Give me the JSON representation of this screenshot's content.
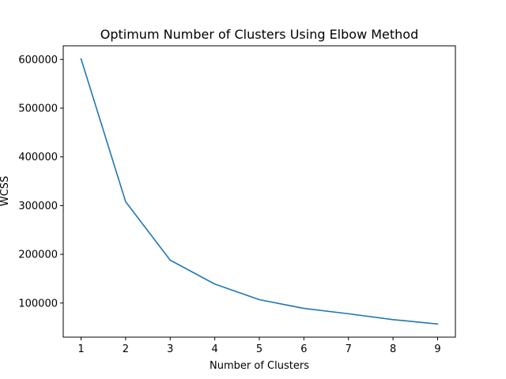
{
  "chart_data": {
    "type": "line",
    "title": "Optimum Number of Clusters Using Elbow Method",
    "xlabel": "Number of Clusters",
    "ylabel": "WCSS",
    "x": [
      1,
      2,
      3,
      4,
      5,
      6,
      7,
      8,
      9
    ],
    "series": [
      {
        "values": [
          601000,
          308000,
          188000,
          139000,
          107000,
          89000,
          78000,
          66000,
          57000
        ],
        "color": "#1f77b4"
      }
    ],
    "xlim": [
      0.6,
      9.4
    ],
    "ylim": [
      30000,
      628000
    ],
    "xticks": [
      1,
      2,
      3,
      4,
      5,
      6,
      7,
      8,
      9
    ],
    "yticks": [
      100000,
      200000,
      300000,
      400000,
      500000,
      600000
    ],
    "xtick_labels": [
      "1",
      "2",
      "3",
      "4",
      "5",
      "6",
      "7",
      "8",
      "9"
    ],
    "ytick_labels": [
      "100000",
      "200000",
      "300000",
      "400000",
      "500000",
      "600000"
    ],
    "grid": false,
    "legend": false
  }
}
